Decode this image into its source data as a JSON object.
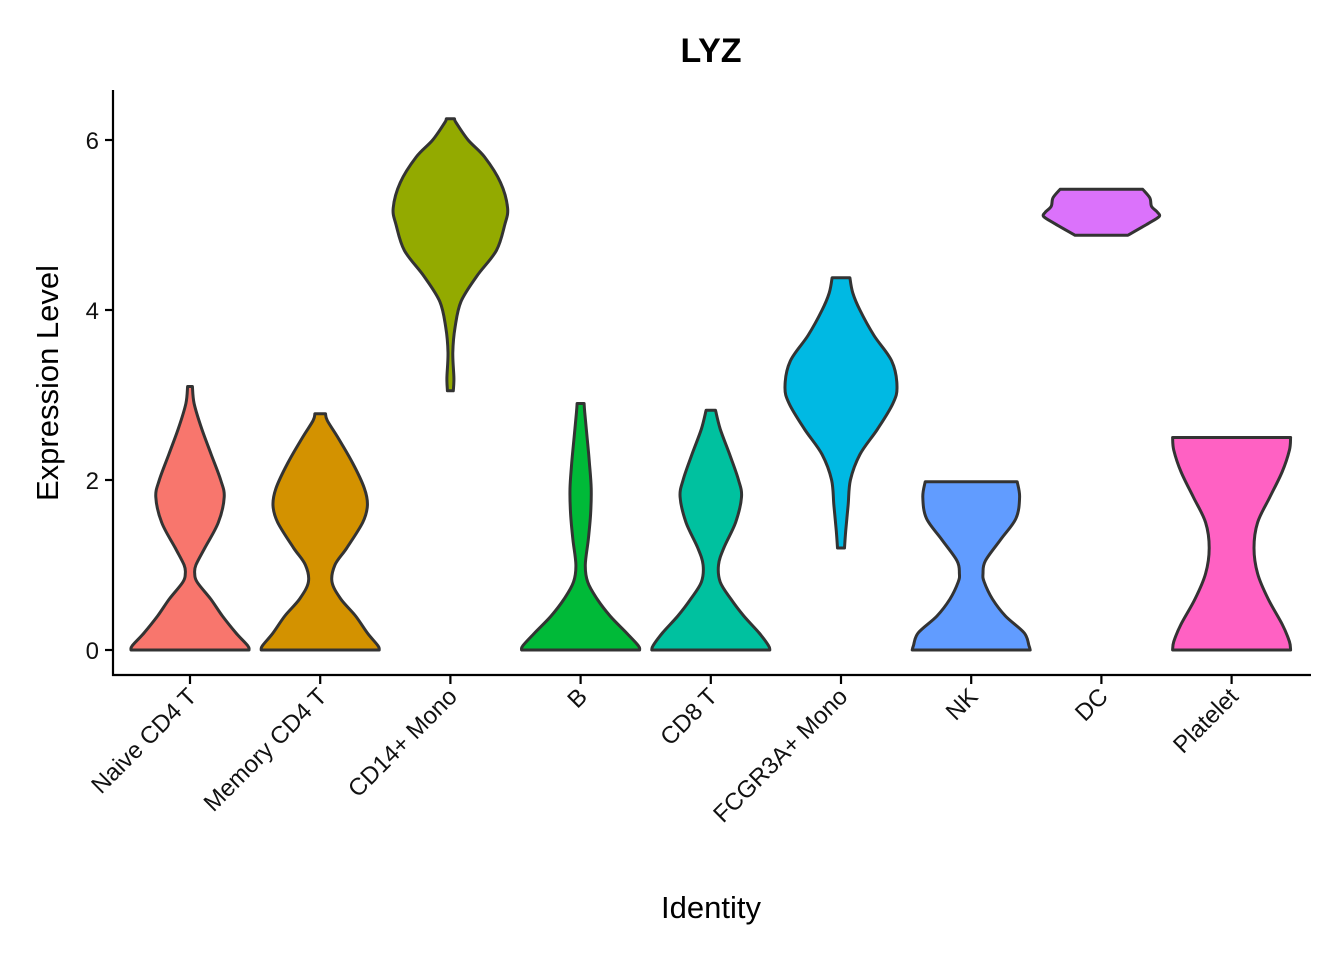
{
  "chart_data": {
    "type": "violin",
    "title": "LYZ",
    "xlabel": "Identity",
    "ylabel": "Expression Level",
    "ylim": [
      -0.3,
      6.6
    ],
    "yticks": [
      0,
      2,
      4,
      6
    ],
    "ytick_labels": [
      "0",
      "2",
      "4",
      "6"
    ],
    "grid": false,
    "legend": "none",
    "categories": [
      "Naive CD4 T",
      "Memory CD4 T",
      "CD14+ Mono",
      "B",
      "CD8 T",
      "FCGR3A+ Mono",
      "NK",
      "DC",
      "Platelet"
    ],
    "series": [
      {
        "name": "Naive CD4 T",
        "color": "#F8766D",
        "min": 0,
        "max": 3.1,
        "density": [
          [
            0,
            1.0
          ],
          [
            0.05,
            0.98
          ],
          [
            0.2,
            0.78
          ],
          [
            0.4,
            0.55
          ],
          [
            0.6,
            0.35
          ],
          [
            0.8,
            0.12
          ],
          [
            0.9,
            0.08
          ],
          [
            1.0,
            0.1
          ],
          [
            1.2,
            0.25
          ],
          [
            1.5,
            0.48
          ],
          [
            1.8,
            0.58
          ],
          [
            2.0,
            0.52
          ],
          [
            2.3,
            0.36
          ],
          [
            2.6,
            0.2
          ],
          [
            2.9,
            0.07
          ],
          [
            3.1,
            0.04
          ]
        ]
      },
      {
        "name": "Memory CD4 T",
        "color": "#D39200",
        "min": 0,
        "max": 2.78,
        "density": [
          [
            0,
            1.0
          ],
          [
            0.05,
            0.98
          ],
          [
            0.2,
            0.8
          ],
          [
            0.4,
            0.6
          ],
          [
            0.6,
            0.35
          ],
          [
            0.8,
            0.2
          ],
          [
            1.0,
            0.25
          ],
          [
            1.2,
            0.45
          ],
          [
            1.5,
            0.72
          ],
          [
            1.7,
            0.8
          ],
          [
            1.9,
            0.75
          ],
          [
            2.2,
            0.55
          ],
          [
            2.5,
            0.3
          ],
          [
            2.7,
            0.12
          ],
          [
            2.78,
            0.09
          ]
        ]
      },
      {
        "name": "CD14+ Mono",
        "color": "#93AA00",
        "min": 3.05,
        "max": 6.25,
        "density": [
          [
            3.05,
            0.05
          ],
          [
            3.2,
            0.06
          ],
          [
            3.5,
            0.04
          ],
          [
            3.8,
            0.08
          ],
          [
            4.1,
            0.18
          ],
          [
            4.4,
            0.45
          ],
          [
            4.7,
            0.78
          ],
          [
            5.0,
            0.92
          ],
          [
            5.2,
            0.97
          ],
          [
            5.5,
            0.85
          ],
          [
            5.8,
            0.58
          ],
          [
            6.0,
            0.3
          ],
          [
            6.2,
            0.1
          ],
          [
            6.25,
            0.07
          ]
        ]
      },
      {
        "name": "B",
        "color": "#00BA38",
        "min": 0,
        "max": 2.9,
        "density": [
          [
            0,
            1.0
          ],
          [
            0.05,
            0.98
          ],
          [
            0.2,
            0.78
          ],
          [
            0.4,
            0.5
          ],
          [
            0.6,
            0.28
          ],
          [
            0.8,
            0.12
          ],
          [
            1.0,
            0.08
          ],
          [
            1.3,
            0.13
          ],
          [
            1.6,
            0.17
          ],
          [
            1.9,
            0.18
          ],
          [
            2.2,
            0.15
          ],
          [
            2.5,
            0.11
          ],
          [
            2.8,
            0.07
          ],
          [
            2.9,
            0.06
          ]
        ]
      },
      {
        "name": "CD8 T",
        "color": "#00C19F",
        "min": 0,
        "max": 2.82,
        "density": [
          [
            0,
            1.0
          ],
          [
            0.05,
            0.98
          ],
          [
            0.2,
            0.82
          ],
          [
            0.4,
            0.56
          ],
          [
            0.6,
            0.34
          ],
          [
            0.8,
            0.16
          ],
          [
            1.0,
            0.13
          ],
          [
            1.2,
            0.22
          ],
          [
            1.5,
            0.42
          ],
          [
            1.8,
            0.52
          ],
          [
            2.0,
            0.47
          ],
          [
            2.3,
            0.32
          ],
          [
            2.6,
            0.16
          ],
          [
            2.82,
            0.08
          ]
        ]
      },
      {
        "name": "FCGR3A+ Mono",
        "color": "#00B9E3",
        "min": 1.2,
        "max": 4.38,
        "density": [
          [
            1.2,
            0.06
          ],
          [
            1.4,
            0.08
          ],
          [
            1.7,
            0.12
          ],
          [
            2.0,
            0.16
          ],
          [
            2.3,
            0.32
          ],
          [
            2.6,
            0.62
          ],
          [
            2.9,
            0.88
          ],
          [
            3.1,
            0.95
          ],
          [
            3.4,
            0.86
          ],
          [
            3.7,
            0.56
          ],
          [
            4.0,
            0.32
          ],
          [
            4.2,
            0.2
          ],
          [
            4.38,
            0.15
          ]
        ]
      },
      {
        "name": "NK",
        "color": "#619CFF",
        "min": 0,
        "max": 1.98,
        "density": [
          [
            0,
            1.0
          ],
          [
            0.05,
            0.98
          ],
          [
            0.2,
            0.9
          ],
          [
            0.4,
            0.58
          ],
          [
            0.6,
            0.36
          ],
          [
            0.8,
            0.22
          ],
          [
            0.9,
            0.2
          ],
          [
            1.05,
            0.24
          ],
          [
            1.3,
            0.5
          ],
          [
            1.55,
            0.76
          ],
          [
            1.8,
            0.82
          ],
          [
            1.98,
            0.78
          ]
        ]
      },
      {
        "name": "DC",
        "color": "#DB72FB",
        "min": 4.88,
        "max": 5.42,
        "density": [
          [
            4.88,
            0.45
          ],
          [
            5.02,
            0.8
          ],
          [
            5.1,
            0.98
          ],
          [
            5.15,
            0.95
          ],
          [
            5.22,
            0.85
          ],
          [
            5.32,
            0.82
          ],
          [
            5.42,
            0.7
          ]
        ]
      },
      {
        "name": "Platelet",
        "color": "#FF61C3",
        "min": 0,
        "max": 2.5,
        "density": [
          [
            0,
            1.0
          ],
          [
            0.1,
            0.98
          ],
          [
            0.3,
            0.86
          ],
          [
            0.6,
            0.62
          ],
          [
            0.9,
            0.44
          ],
          [
            1.2,
            0.38
          ],
          [
            1.5,
            0.44
          ],
          [
            1.8,
            0.65
          ],
          [
            2.1,
            0.86
          ],
          [
            2.35,
            0.98
          ],
          [
            2.5,
            1.0
          ]
        ]
      }
    ]
  }
}
